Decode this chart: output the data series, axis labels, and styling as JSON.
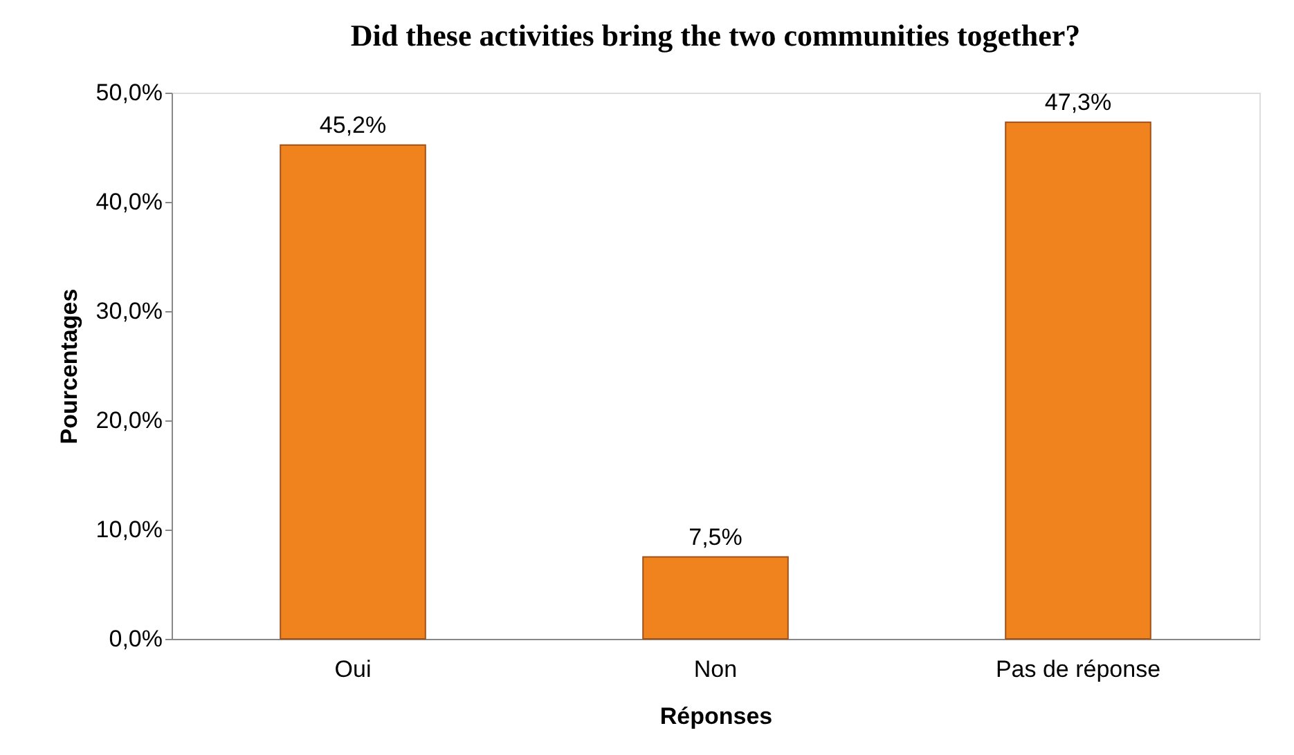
{
  "chart_data": {
    "type": "bar",
    "title": "Did these activities bring the two communities together?",
    "xlabel": "Réponses",
    "ylabel": "Pourcentages",
    "categories": [
      "Oui",
      "Non",
      "Pas de réponse"
    ],
    "values": [
      45.2,
      7.5,
      47.3
    ],
    "value_labels": [
      "45,2%",
      "7,5%",
      "47,3%"
    ],
    "color": "#f0831e",
    "ylim": [
      0,
      50
    ],
    "yticks": [
      {
        "value": 0,
        "label": "0,0%"
      },
      {
        "value": 10,
        "label": "10,0%"
      },
      {
        "value": 20,
        "label": "20,0%"
      },
      {
        "value": 30,
        "label": "30,0%"
      },
      {
        "value": 40,
        "label": "40,0%"
      },
      {
        "value": 50,
        "label": "50,0%"
      }
    ],
    "grid": false
  }
}
